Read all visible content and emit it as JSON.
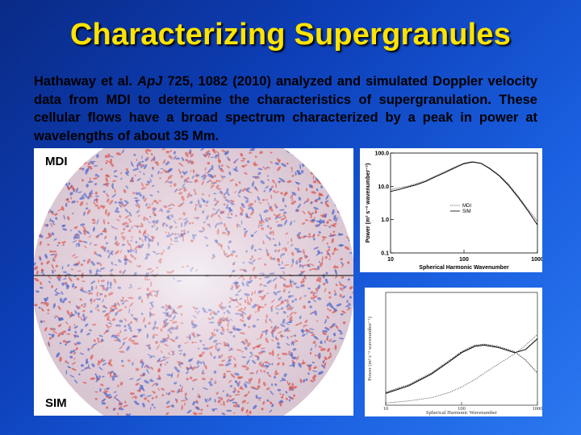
{
  "slide": {
    "title": "Characterizing Supergranules",
    "body_prefix": "Hathaway et al. ",
    "body_journal": "ApJ",
    "body_rest": " 725, 1082 (2010) analyzed and simulated Doppler velocity data from MDI to determine the characteristics of supergranulation. These cellular flows have a broad spectrum characterized by a peak in power at wavelengths of about 35 Mm."
  },
  "disk": {
    "label_top": "MDI",
    "label_bottom": "SIM"
  },
  "chart_data": [
    {
      "type": "line",
      "xlabel": "Spherical Harmonic Wavenumber",
      "ylabel": "Power (m² s⁻² wavenumber⁻¹)",
      "x_scale": "log",
      "y_scale": "log",
      "xlim": [
        10,
        1000
      ],
      "ylim": [
        0.1,
        100
      ],
      "x_ticks": [
        "10",
        "100",
        "1000"
      ],
      "y_ticks": [
        "100.0",
        "10.0",
        "1.0",
        "0.1"
      ],
      "legend": [
        "MDI",
        "SIM"
      ],
      "legend_position": "right",
      "series": [
        {
          "name": "MDI",
          "x": [
            10,
            13,
            17,
            22,
            30,
            40,
            55,
            75,
            100,
            130,
            170,
            220,
            300,
            400,
            550,
            750,
            1000
          ],
          "y": [
            8,
            9,
            10,
            12,
            15,
            20,
            28,
            38,
            50,
            55,
            50,
            36,
            22,
            12,
            5,
            2,
            0.9
          ]
        },
        {
          "name": "SIM",
          "x": [
            10,
            13,
            17,
            22,
            30,
            40,
            55,
            75,
            100,
            130,
            170,
            220,
            300,
            400,
            550,
            750,
            1000
          ],
          "y": [
            7,
            8,
            9.5,
            11,
            14,
            19,
            26,
            36,
            48,
            54,
            49,
            35,
            21,
            11,
            4.6,
            1.8,
            0.7
          ]
        }
      ]
    },
    {
      "type": "line",
      "xlabel": "Spherical Harmonic Wavenumber",
      "ylabel": "Power (m² s⁻² wavenumber⁻¹)",
      "x_scale": "log",
      "y_scale": "log",
      "x_ticks": [
        "10",
        "100",
        "1000"
      ],
      "series": [
        {
          "x": [
            10,
            20,
            40,
            70,
            100,
            150,
            200,
            300,
            500,
            700,
            1000
          ],
          "y": [
            0.12,
            0.19,
            0.3,
            0.42,
            0.5,
            0.56,
            0.57,
            0.55,
            0.5,
            0.42,
            0.3
          ]
        },
        {
          "x": [
            10,
            20,
            40,
            70,
            100,
            150,
            200,
            300,
            500,
            700,
            1000
          ],
          "y": [
            0.11,
            0.18,
            0.29,
            0.41,
            0.49,
            0.55,
            0.56,
            0.54,
            0.49,
            0.52,
            0.62
          ]
        },
        {
          "x": [
            10,
            20,
            40,
            70,
            100,
            150,
            200,
            300,
            500,
            700,
            1000
          ],
          "y": [
            0.02,
            0.04,
            0.07,
            0.12,
            0.17,
            0.24,
            0.3,
            0.38,
            0.48,
            0.56,
            0.66
          ]
        }
      ]
    }
  ]
}
